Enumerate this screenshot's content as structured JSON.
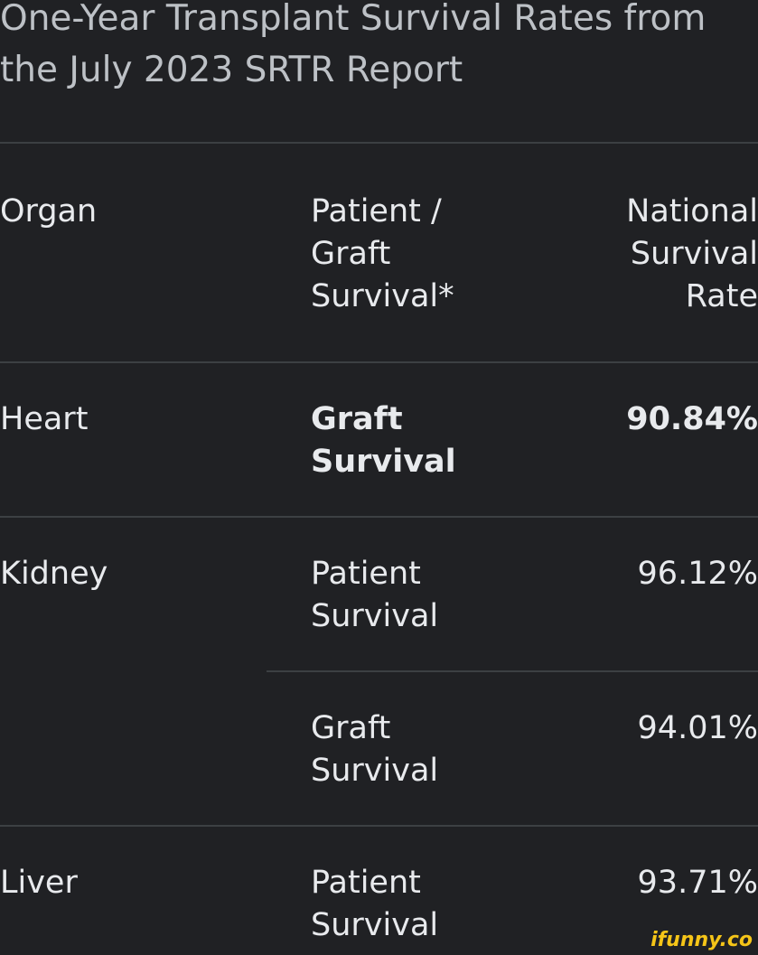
{
  "title": "One-Year Transplant Survival Rates from the July 2023 SRTR Report",
  "table": {
    "headers": [
      "Organ",
      "Patient / Graft Survival*",
      "National Survival Rate"
    ],
    "rows": [
      {
        "organ": "Heart",
        "entries": [
          {
            "measure": "Graft Survival",
            "rate": "90.84%"
          }
        ]
      },
      {
        "organ": "Kidney",
        "entries": [
          {
            "measure": "Patient Survival",
            "rate": "96.12%"
          },
          {
            "measure": "Graft Survival",
            "rate": "94.01%"
          }
        ]
      },
      {
        "organ": "Liver",
        "entries": [
          {
            "measure": "Patient Survival",
            "rate": "93.71%"
          }
        ]
      }
    ]
  },
  "watermark": "ifunny.co"
}
